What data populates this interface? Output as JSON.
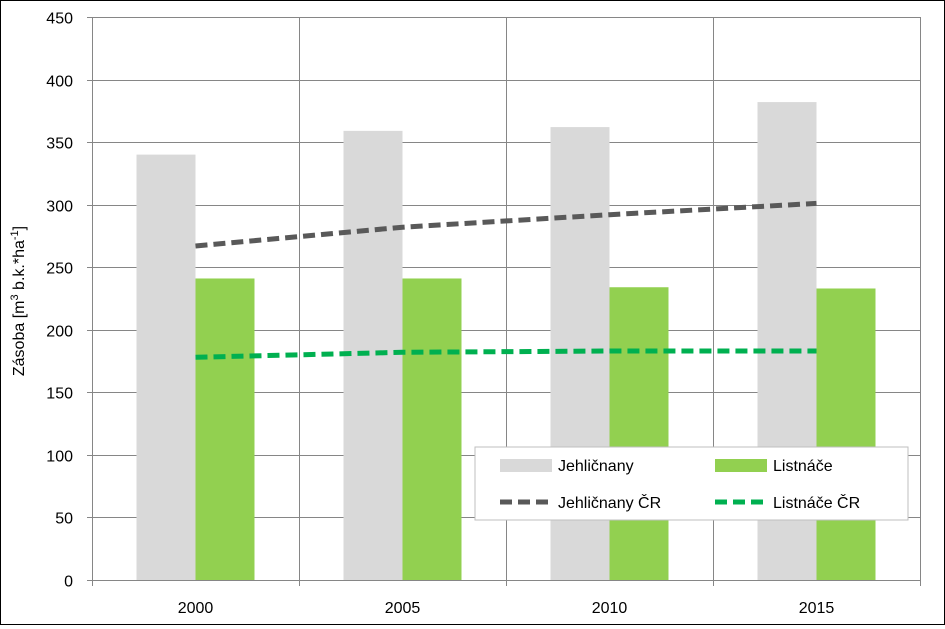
{
  "chart_data": {
    "type": "bar",
    "categories": [
      "2000",
      "2005",
      "2010",
      "2015"
    ],
    "ylabel": "Zásoba [m3 b.k.*ha-1]",
    "ylabel_parts": {
      "pre": "Zásoba [m",
      "sup1": "3",
      "mid": " b.k.*ha",
      "sup2": "-1",
      "post": "]"
    },
    "ylim": [
      0,
      450
    ],
    "yticks": [
      0,
      50,
      100,
      150,
      200,
      250,
      300,
      350,
      400,
      450
    ],
    "grid": true,
    "legend_position": "bottom-right",
    "series": [
      {
        "name": "Jehličnany",
        "kind": "bar",
        "color": "#d9d9d9",
        "values": [
          340,
          359,
          362,
          382
        ]
      },
      {
        "name": "Listnáče",
        "kind": "bar",
        "color": "#92d050",
        "values": [
          241,
          241,
          234,
          233
        ]
      },
      {
        "name": "Jehličnany ČR",
        "kind": "line",
        "style": "dashed",
        "color": "#595959",
        "values": [
          267,
          282,
          292,
          301
        ]
      },
      {
        "name": "Listnáče ČR",
        "kind": "line",
        "style": "dashed",
        "color": "#00b050",
        "values": [
          178,
          182,
          183,
          183
        ]
      }
    ]
  }
}
